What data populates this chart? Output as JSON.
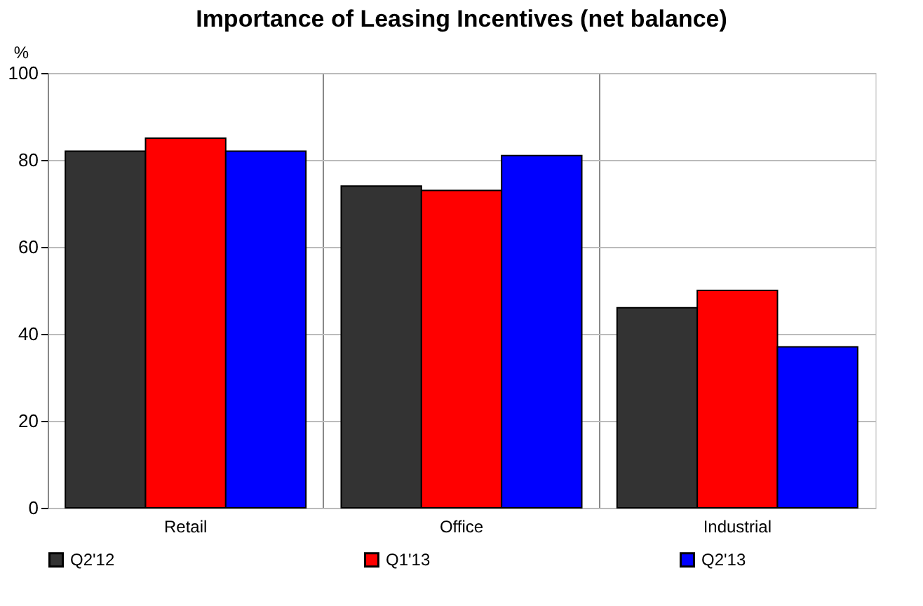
{
  "chart_data": {
    "type": "bar",
    "title": "Importance of Leasing Incentives (net balance)",
    "ylabel": "%",
    "categories": [
      "Retail",
      "Office",
      "Industrial"
    ],
    "series": [
      {
        "name": "Q2'12",
        "color": "#333333",
        "values": [
          82,
          74,
          46
        ]
      },
      {
        "name": "Q1'13",
        "color": "#ff0000",
        "values": [
          85,
          73,
          50
        ]
      },
      {
        "name": "Q2'13",
        "color": "#0000ff",
        "values": [
          82,
          81,
          37
        ]
      }
    ],
    "ylim": [
      0,
      100
    ],
    "yticks": [
      0,
      20,
      40,
      60,
      80,
      100
    ],
    "grid": true,
    "legend": "bottom"
  }
}
